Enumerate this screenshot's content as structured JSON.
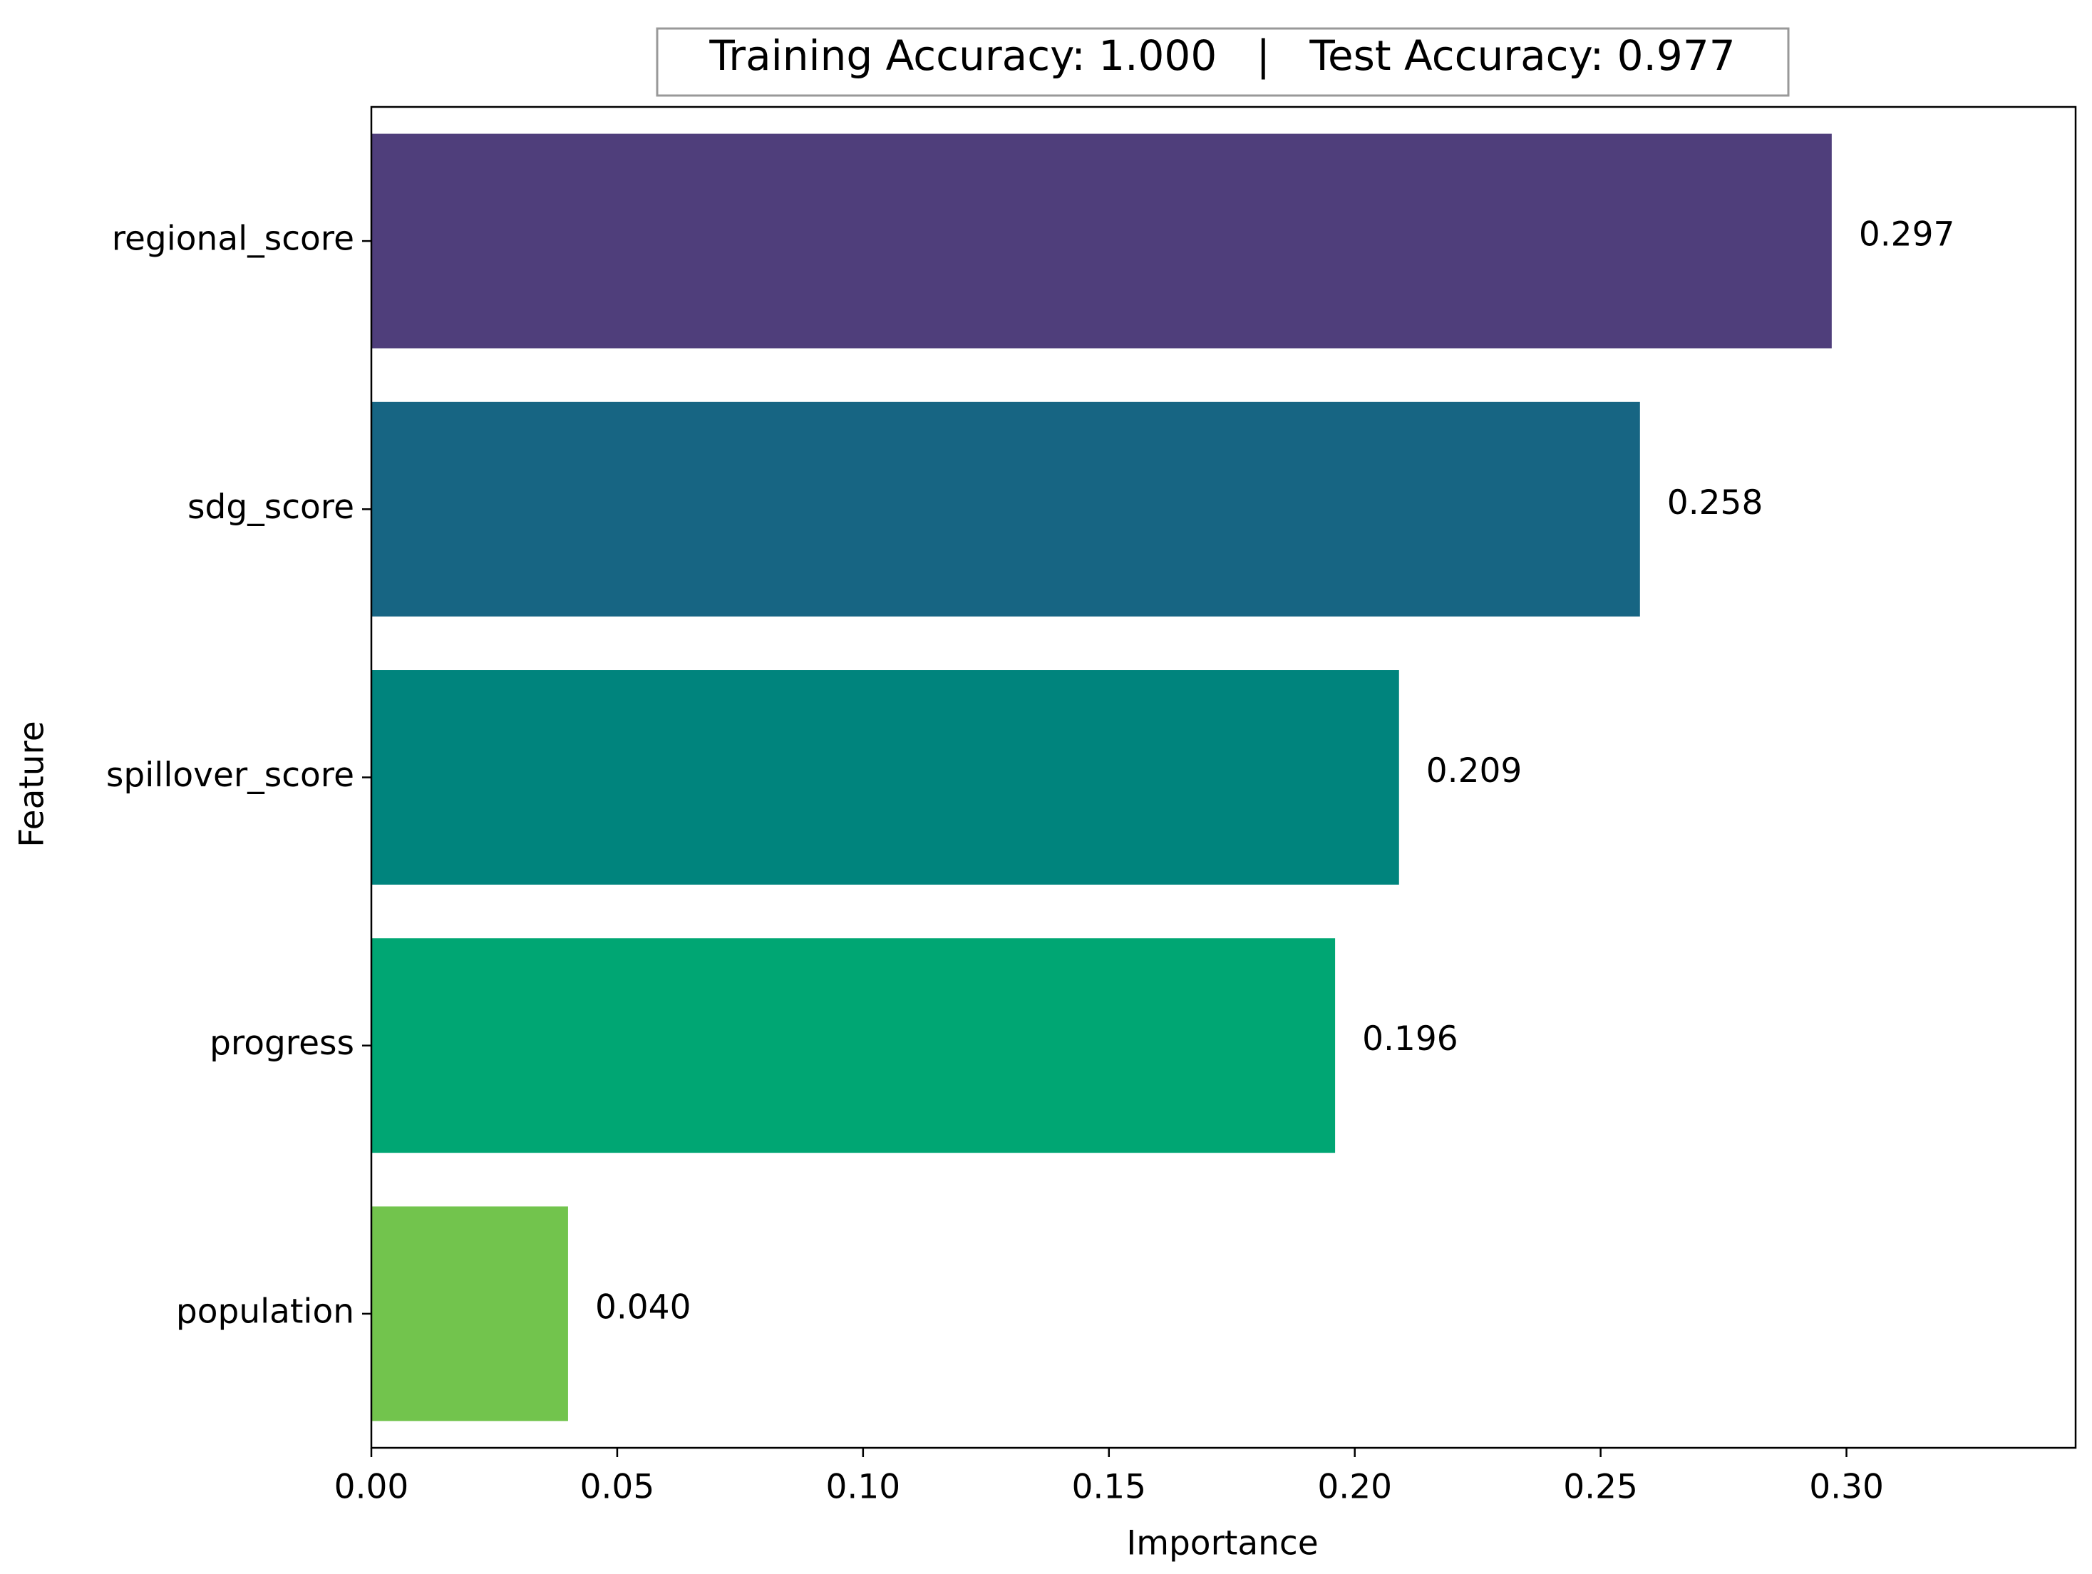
{
  "chart_data": {
    "type": "barh",
    "title": "Training Accuracy: 1.000   |   Test Accuracy: 0.977",
    "xlabel": "Importance",
    "ylabel": "Feature",
    "categories": [
      "regional_score",
      "sdg_score",
      "spillover_score",
      "progress",
      "population"
    ],
    "values": [
      0.297,
      0.258,
      0.209,
      0.196,
      0.04
    ],
    "value_labels": [
      "0.297",
      "0.258",
      "0.209",
      "0.196",
      "0.040"
    ],
    "colors": [
      "#4f3e7b",
      "#176583",
      "#00847d",
      "#00a673",
      "#72c44d"
    ],
    "xlim": [
      0,
      0.3466
    ],
    "xticks": [
      {
        "value": 0,
        "label": "0.00"
      },
      0.05,
      {
        "value": 0.1,
        "label": "0.10"
      },
      0.15,
      {
        "value": 0.2,
        "label": "0.20"
      },
      0.25,
      {
        "value": 0.3,
        "label": "0.30"
      }
    ]
  }
}
